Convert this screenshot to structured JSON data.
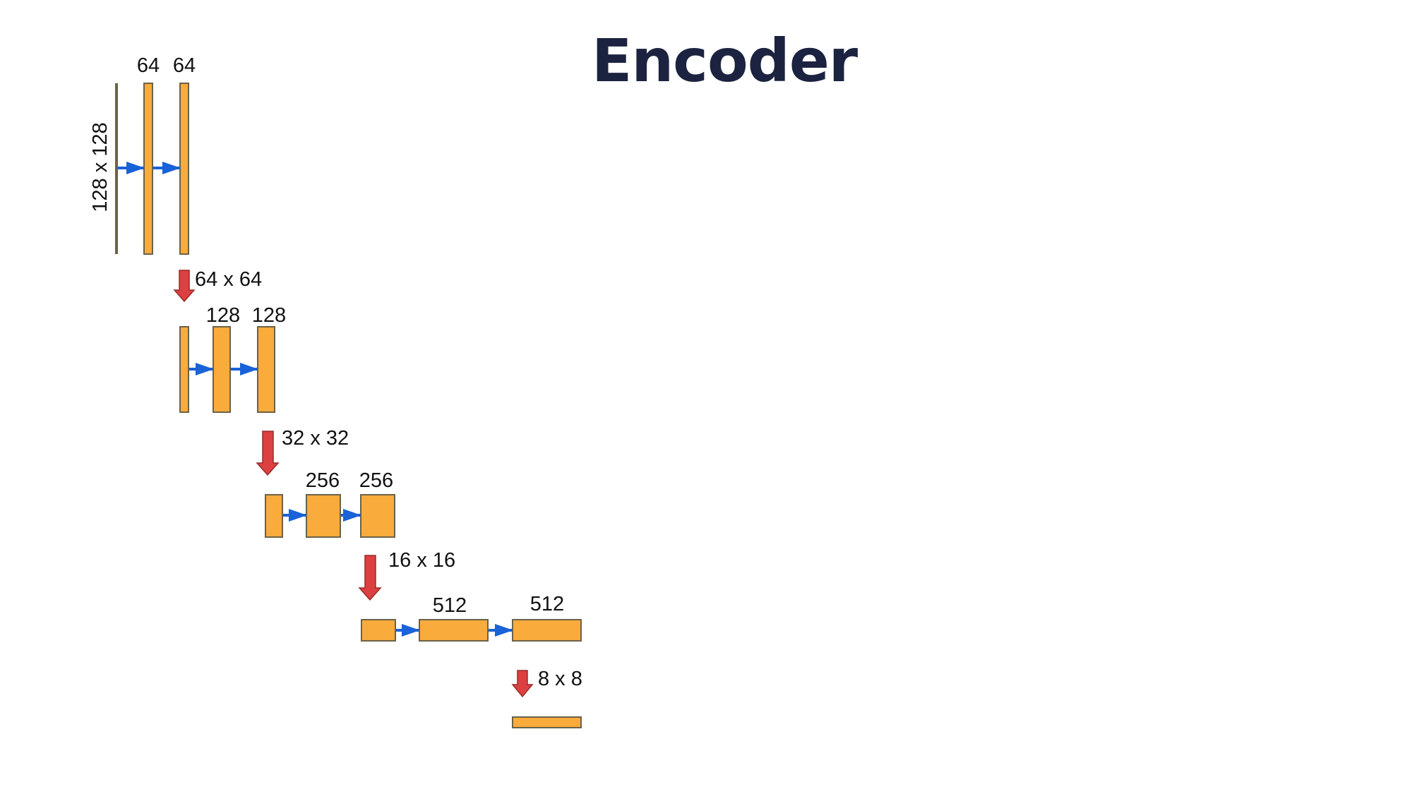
{
  "title": "Encoder",
  "colors": {
    "block_fill": "#f9ab3c",
    "block_stroke": "#6b6248",
    "conv_arrow": "#1a62d8",
    "pool_arrow": "#dd4040",
    "title": "#1c2340"
  },
  "input": {
    "size_label": "128 x 128"
  },
  "stages": [
    {
      "channels": [
        "64",
        "64"
      ],
      "pool_label": "64 x 64"
    },
    {
      "channels": [
        "128",
        "128"
      ],
      "pool_label": "32 x 32"
    },
    {
      "channels": [
        "256",
        "256"
      ],
      "pool_label": "16 x 16"
    },
    {
      "channels": [
        "512",
        "512"
      ],
      "pool_label": "8 x 8"
    }
  ]
}
